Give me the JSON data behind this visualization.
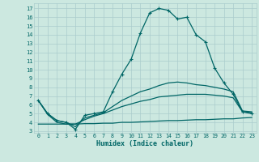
{
  "title": "",
  "xlabel": "Humidex (Indice chaleur)",
  "bg_color": "#cce8e0",
  "grid_color": "#aacccc",
  "line_color": "#006666",
  "xlim": [
    -0.5,
    23.5
  ],
  "ylim": [
    2.8,
    17.6
  ],
  "xticks": [
    0,
    1,
    2,
    3,
    4,
    5,
    6,
    7,
    8,
    9,
    10,
    11,
    12,
    13,
    14,
    15,
    16,
    17,
    18,
    19,
    20,
    21,
    22,
    23
  ],
  "yticks": [
    3,
    4,
    5,
    6,
    7,
    8,
    9,
    10,
    11,
    12,
    13,
    14,
    15,
    16,
    17
  ],
  "main_line": [
    6.5,
    5.0,
    4.2,
    4.0,
    3.2,
    4.8,
    5.0,
    5.2,
    7.5,
    9.5,
    11.2,
    14.2,
    16.5,
    17.0,
    16.8,
    15.8,
    16.0,
    14.0,
    13.2,
    10.2,
    8.5,
    7.2,
    5.2,
    5.0
  ],
  "line2": [
    6.5,
    5.0,
    4.2,
    4.0,
    3.5,
    4.5,
    4.8,
    5.1,
    5.8,
    6.5,
    7.0,
    7.5,
    7.8,
    8.2,
    8.5,
    8.6,
    8.5,
    8.3,
    8.2,
    8.0,
    7.8,
    7.5,
    5.3,
    5.2
  ],
  "line3": [
    6.5,
    4.9,
    4.0,
    3.8,
    3.8,
    4.3,
    4.7,
    5.0,
    5.4,
    5.8,
    6.1,
    6.4,
    6.6,
    6.9,
    7.0,
    7.1,
    7.2,
    7.2,
    7.2,
    7.1,
    7.0,
    6.8,
    5.2,
    5.1
  ],
  "line4": [
    3.8,
    3.8,
    3.8,
    3.8,
    3.8,
    3.85,
    3.85,
    3.9,
    3.9,
    4.0,
    4.0,
    4.05,
    4.1,
    4.15,
    4.2,
    4.2,
    4.25,
    4.3,
    4.3,
    4.35,
    4.4,
    4.4,
    4.5,
    4.55
  ]
}
